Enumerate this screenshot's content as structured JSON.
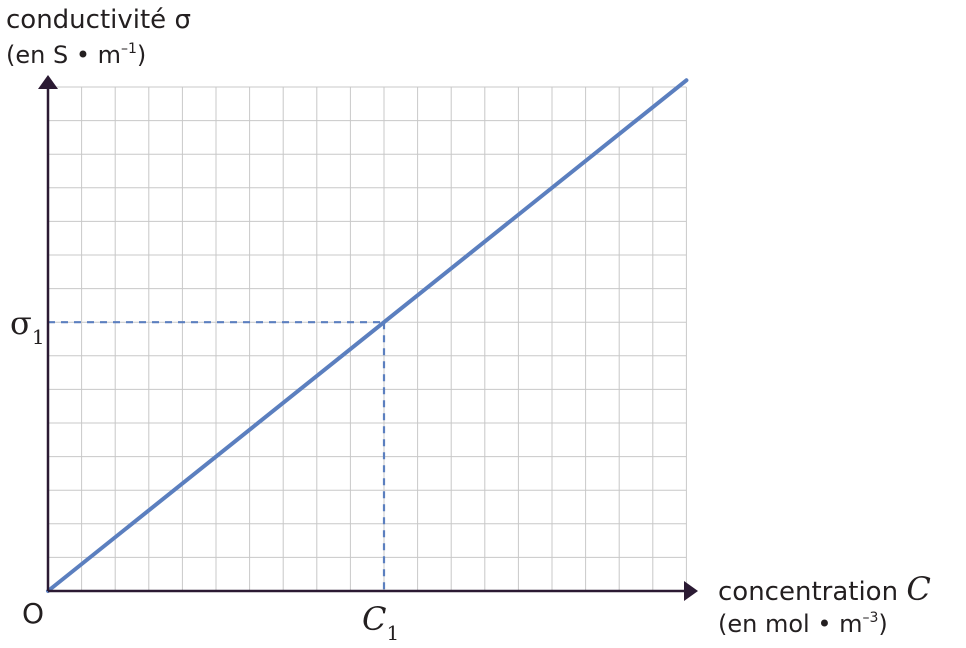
{
  "chart_data": {
    "type": "line",
    "ylabel": {
      "line1": "conductivité σ",
      "line2_prefix": "(en S • m",
      "line2_exp": "–1",
      "line2_suffix": ")"
    },
    "xlabel": {
      "line1_text": "concentration ",
      "line1_var": "C",
      "line2_prefix": "(en mol • m",
      "line2_exp": "–3",
      "line2_suffix": ")"
    },
    "origin_label": "O",
    "x_marker": {
      "symbol": "C",
      "subscript": "1",
      "value": 10
    },
    "y_marker": {
      "symbol": "σ",
      "subscript": "1",
      "value": 8
    },
    "xlim": [
      0,
      19
    ],
    "ylim": [
      0,
      15
    ],
    "grid": true,
    "series": [
      {
        "x": [
          0,
          19
        ],
        "y": [
          0,
          15.2
        ]
      }
    ],
    "colors": {
      "line": "#5b7fbf",
      "grid": "#c8c8c8",
      "axis": "#2b1a33"
    }
  }
}
